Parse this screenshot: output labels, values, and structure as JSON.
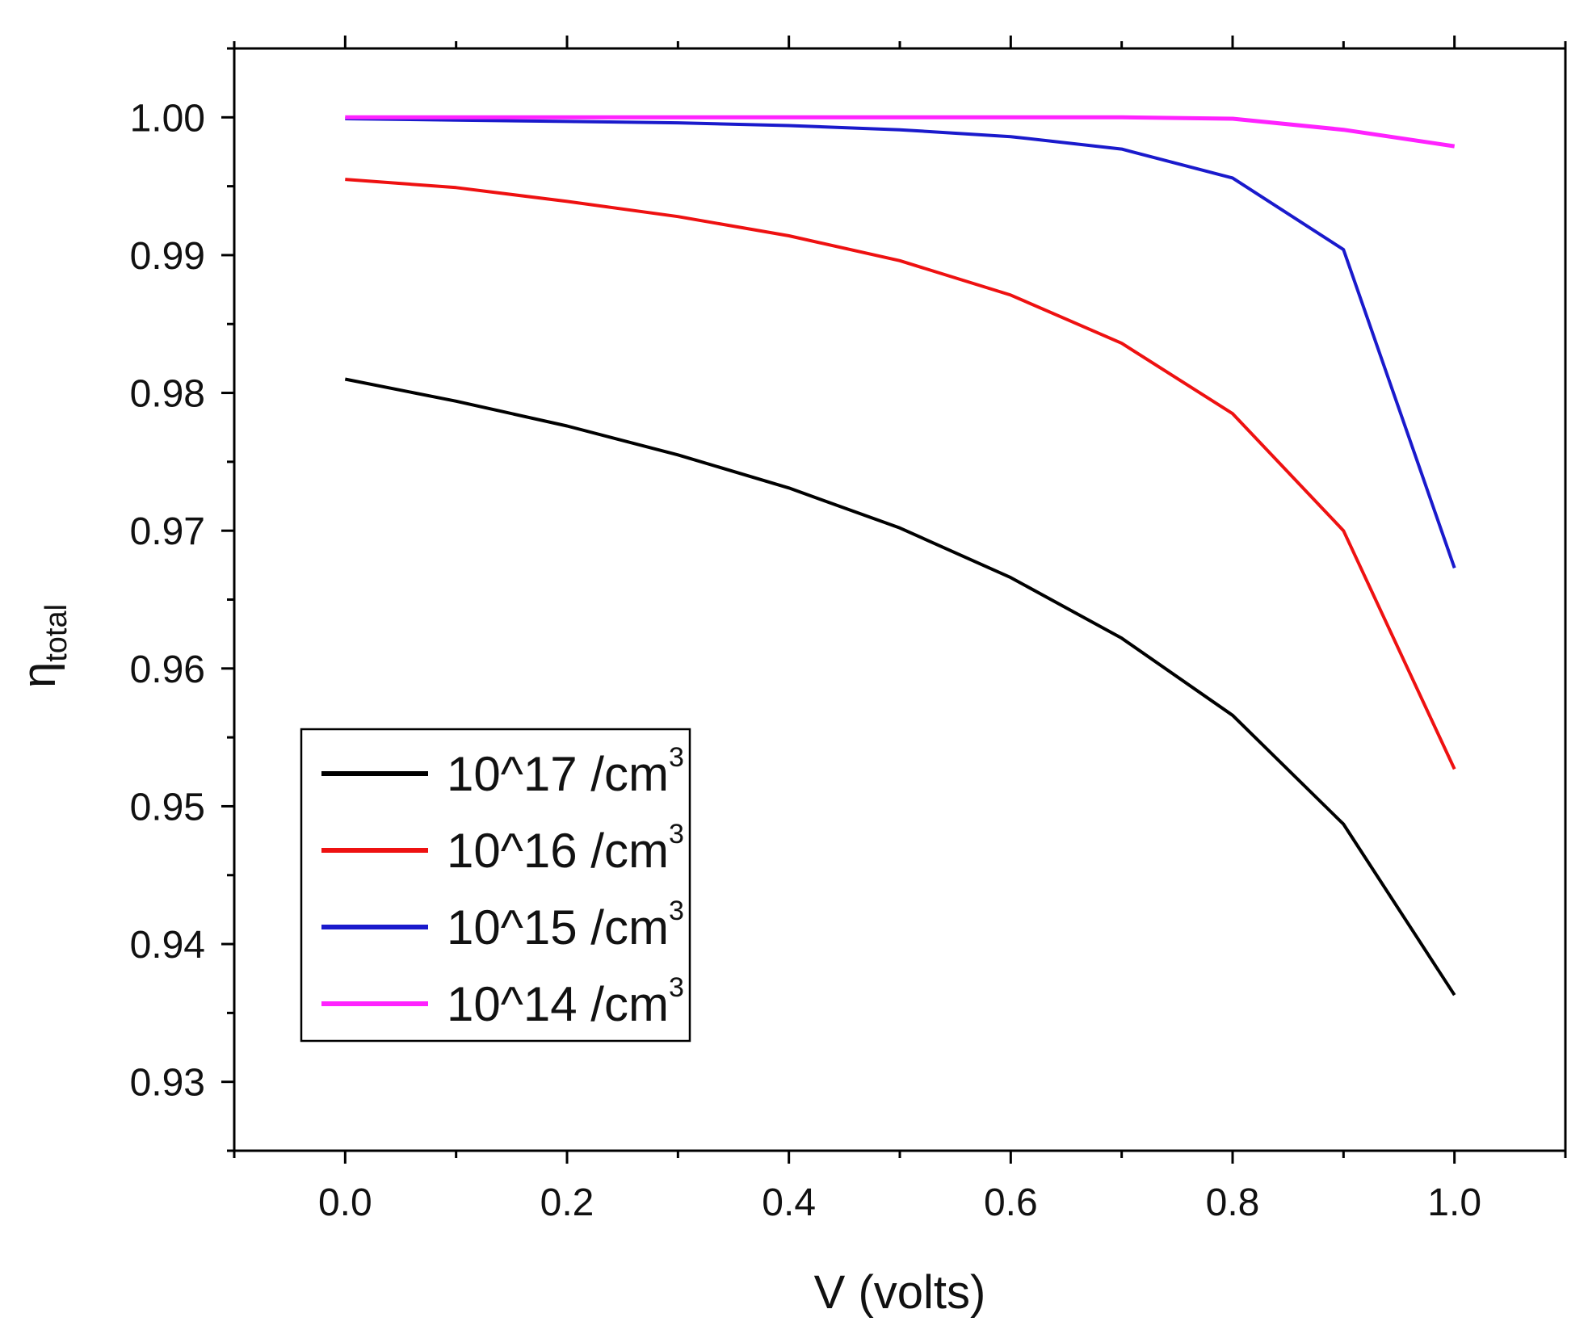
{
  "chart_data": {
    "type": "line",
    "title": "",
    "xlabel": "V (volts)",
    "ylabel": "η",
    "ylabel_subscript": "total",
    "xlim": [
      -0.1,
      1.1
    ],
    "ylim": [
      0.925,
      1.005
    ],
    "x_ticks": [
      0.0,
      0.2,
      0.4,
      0.6,
      0.8,
      1.0
    ],
    "x_tick_labels": [
      "0.0",
      "0.2",
      "0.4",
      "0.6",
      "0.8",
      "1.0"
    ],
    "y_ticks": [
      0.93,
      0.94,
      0.95,
      0.96,
      0.97,
      0.98,
      0.99,
      1.0
    ],
    "y_tick_labels": [
      "0.93",
      "0.94",
      "0.95",
      "0.96",
      "0.97",
      "0.98",
      "0.99",
      "1.00"
    ],
    "grid": false,
    "legend_position": "bottom-left",
    "x": [
      0.0,
      0.1,
      0.2,
      0.3,
      0.4,
      0.5,
      0.6,
      0.7,
      0.8,
      0.9,
      1.0
    ],
    "series": [
      {
        "name": "10^17 /cm",
        "sup": "3",
        "color": "#000000",
        "values": [
          0.981,
          0.9794,
          0.9776,
          0.9755,
          0.9731,
          0.9702,
          0.9666,
          0.9622,
          0.9566,
          0.9487,
          0.9363
        ]
      },
      {
        "name": "10^16 /cm",
        "sup": "3",
        "color": "#ee1111",
        "values": [
          0.9955,
          0.9949,
          0.9939,
          0.9928,
          0.9914,
          0.9896,
          0.9871,
          0.9836,
          0.9785,
          0.97,
          0.9527
        ]
      },
      {
        "name": "10^15 /cm",
        "sup": "3",
        "color": "#1a1acc",
        "values": [
          0.9999,
          0.9998,
          0.9997,
          0.9996,
          0.9994,
          0.9991,
          0.9986,
          0.9977,
          0.9956,
          0.9904,
          0.9673
        ]
      },
      {
        "name": "10^14 /cm",
        "sup": "3",
        "color": "#ff22ff",
        "values": [
          1.0,
          1.0,
          1.0,
          1.0,
          1.0,
          1.0,
          1.0,
          1.0,
          0.9999,
          0.9991,
          0.9979
        ]
      }
    ]
  }
}
